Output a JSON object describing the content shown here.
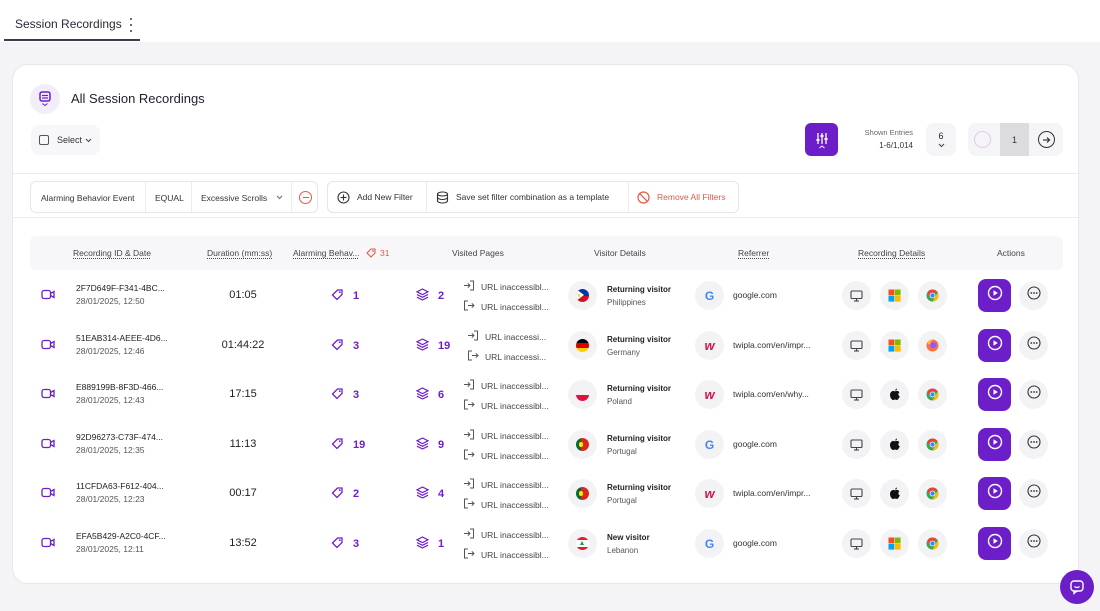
{
  "tabs": [
    {
      "label": "Session Recordings"
    }
  ],
  "title": "All Session Recordings",
  "select_label": "Select",
  "shown_entries": {
    "label": "Shown Entries",
    "value": "1-6/1,014"
  },
  "per_page": "6",
  "pagination": {
    "page": "1"
  },
  "filter": {
    "field": "Alarming Behavior Event",
    "operator": "EQUAL",
    "value": "Excessive Scrolls"
  },
  "filter_actions": {
    "add": "Add New Filter",
    "save": "Save set filter combination as a template",
    "remove": "Remove All Filters"
  },
  "columns": {
    "id": "Recording ID & Date",
    "duration": "Duration (mm:ss)",
    "alarm": "Alarming Behav...",
    "alarm_count": "31",
    "pages": "Visited Pages",
    "visitor": "Visitor Details",
    "referrer": "Referrer",
    "details": "Recording Details",
    "actions": "Actions"
  },
  "url_label": "URL inaccessibl...",
  "url_label_short": "URL inaccessi...",
  "rows": [
    {
      "id": "2F7D649F-F341-4BC...",
      "date": "28/01/2025, 12:50",
      "duration": "01:05",
      "alarms": "1",
      "pages": "2",
      "visitor_type": "Returning visitor",
      "country": "Philippines",
      "flag": "ph",
      "referrer_icon": "google",
      "referrer": "google.com",
      "os": "windows",
      "browser": "chrome"
    },
    {
      "id": "51EAB314-AEEE-4D6...",
      "date": "28/01/2025, 12:46",
      "duration": "01:44:22",
      "alarms": "3",
      "pages": "19",
      "visitor_type": "Returning visitor",
      "country": "Germany",
      "flag": "de",
      "referrer_icon": "twipla",
      "referrer": "twipla.com/en/impr...",
      "os": "windows",
      "browser": "firefox"
    },
    {
      "id": "E889199B-8F3D-466...",
      "date": "28/01/2025, 12:43",
      "duration": "17:15",
      "alarms": "3",
      "pages": "6",
      "visitor_type": "Returning visitor",
      "country": "Poland",
      "flag": "pl",
      "referrer_icon": "twipla",
      "referrer": "twipla.com/en/why...",
      "os": "apple",
      "browser": "chrome"
    },
    {
      "id": "92D96273-C73F-474...",
      "date": "28/01/2025, 12:35",
      "duration": "11:13",
      "alarms": "19",
      "pages": "9",
      "visitor_type": "Returning visitor",
      "country": "Portugal",
      "flag": "pt",
      "referrer_icon": "google",
      "referrer": "google.com",
      "os": "apple",
      "browser": "chrome"
    },
    {
      "id": "11CFDA63-F612-404...",
      "date": "28/01/2025, 12:23",
      "duration": "00:17",
      "alarms": "2",
      "pages": "4",
      "visitor_type": "Returning visitor",
      "country": "Portugal",
      "flag": "pt",
      "referrer_icon": "twipla",
      "referrer": "twipla.com/en/impr...",
      "os": "apple",
      "browser": "chrome"
    },
    {
      "id": "EFA5B429-A2C0-4CF...",
      "date": "28/01/2025, 12:11",
      "duration": "13:52",
      "alarms": "3",
      "pages": "1",
      "visitor_type": "New visitor",
      "country": "Lebanon",
      "flag": "lb",
      "referrer_icon": "google",
      "referrer": "google.com",
      "os": "windows",
      "browser": "chrome"
    }
  ],
  "colors": {
    "accent": "#6c1fc8",
    "danger": "#e25a45"
  }
}
